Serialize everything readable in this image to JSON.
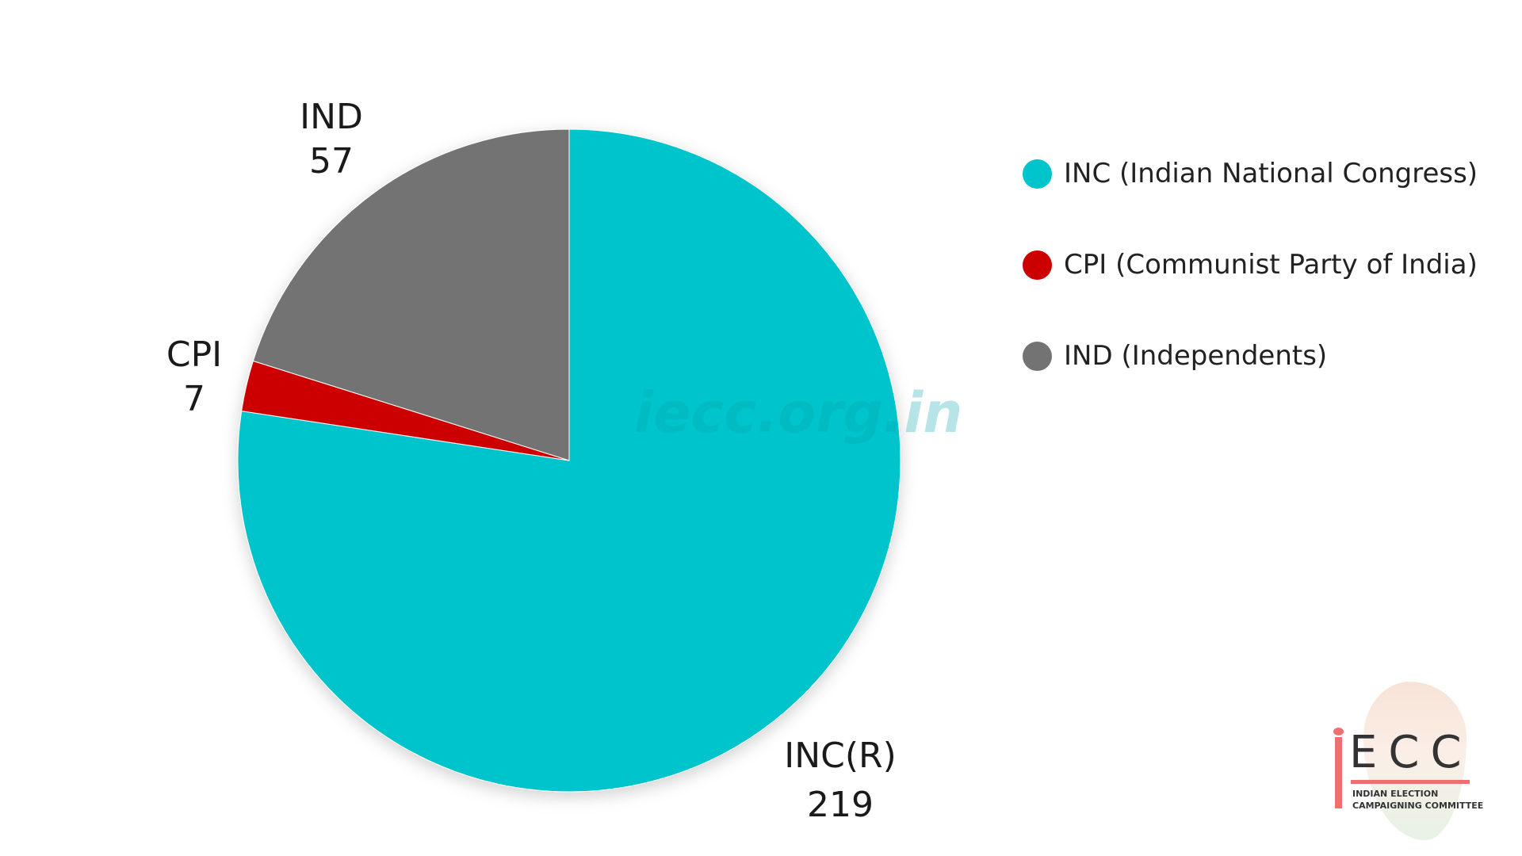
{
  "chart_data": {
    "type": "pie",
    "slices": [
      {
        "label": "INC(R)",
        "value": 219,
        "color": "#00c4cb"
      },
      {
        "label": "CPI",
        "value": 7,
        "color": "#cc0000"
      },
      {
        "label": "IND",
        "value": 57,
        "color": "#737373"
      }
    ],
    "legend_position": "right",
    "legend": [
      {
        "label": "INC (Indian National Congress)",
        "color": "#00c4cb"
      },
      {
        "label": "CPI (Communist Party of India)",
        "color": "#cc0000"
      },
      {
        "label": "IND (Independents)",
        "color": "#737373"
      }
    ]
  },
  "watermark": "iecc.org.in",
  "logo": {
    "text": "ECC",
    "subtitle_line1": "INDIAN ELECTION",
    "subtitle_line2": "CAMPAIGNING COMMITTEE"
  }
}
